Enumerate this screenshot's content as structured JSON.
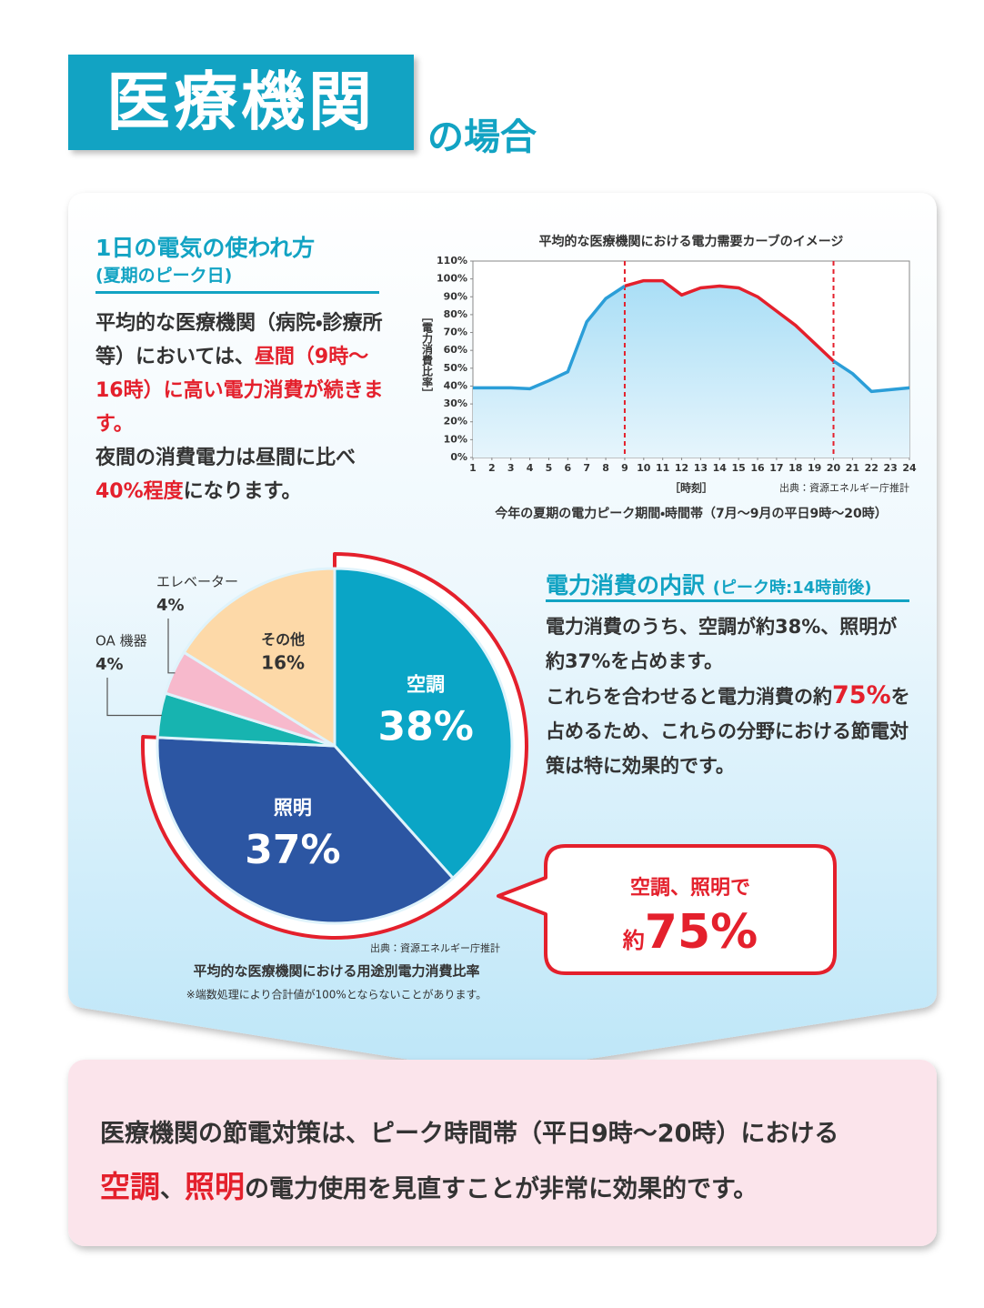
{
  "header": {
    "title": "医療機関",
    "suffix": "の場合"
  },
  "daily_usage": {
    "heading": "1日の電気の使われ方",
    "subheading": "(夏期のピーク日)",
    "paragraphs": [
      [
        {
          "text": "平均的な医療機関（病院・診療所等）においては、"
        },
        {
          "text": "昼間（9時〜16時）に高い電力消費が続きます。",
          "highlight": true
        }
      ],
      [
        {
          "text": "夜間の消費電力は昼間に比べ"
        },
        {
          "text": "40%程度",
          "highlight": true
        },
        {
          "text": "になります。"
        }
      ]
    ]
  },
  "chart_data": [
    {
      "type": "line",
      "title": "平均的な医療機関における電力需要カーブのイメージ",
      "x": [
        1,
        2,
        3,
        4,
        5,
        6,
        7,
        8,
        9,
        10,
        11,
        12,
        13,
        14,
        15,
        16,
        17,
        18,
        19,
        20,
        21,
        22,
        23,
        24
      ],
      "values": [
        39,
        39,
        39,
        38.5,
        43,
        48,
        76,
        89,
        96,
        99,
        99,
        91,
        95,
        96,
        95,
        90,
        82,
        74,
        64,
        54,
        47,
        37,
        38,
        39
      ],
      "color": "#2b9ed8",
      "highlight_color": "#e4202c",
      "highlight_range": [
        9,
        20
      ],
      "xlim": [
        1,
        24
      ],
      "ylim": [
        0,
        110
      ],
      "yticks": [
        {
          "value": 0,
          "label": "0%"
        },
        {
          "value": 10,
          "label": "10%"
        },
        {
          "value": 20,
          "label": "20%"
        },
        {
          "value": 30,
          "label": "30%"
        },
        {
          "value": 40,
          "label": "40%"
        },
        {
          "value": 50,
          "label": "50%"
        },
        {
          "value": 60,
          "label": "60%"
        },
        {
          "value": 70,
          "label": "70%"
        },
        {
          "value": 80,
          "label": "80%"
        },
        {
          "value": 90,
          "label": "90%"
        },
        {
          "value": 100,
          "label": "100%"
        },
        {
          "value": 110,
          "label": "110%"
        }
      ],
      "ylabel": "［電力消費比率］",
      "xlabel": "［時刻］",
      "source": "出典：資源エネルギー庁推計",
      "caption": "今年の夏期の電力ピーク期間・時間帯（7月〜9月の平日9時〜20時）"
    },
    {
      "type": "pie",
      "categories": [
        "空調",
        "照明",
        "OA 機器",
        "エレベーター",
        "その他"
      ],
      "values": [
        38,
        37,
        4,
        4,
        16
      ],
      "value_labels": [
        "38%",
        "37%",
        "4%",
        "4%",
        "16%"
      ],
      "colors": [
        "#0aa5c6",
        "#2c56a3",
        "#17b4b0",
        "#f7b9cc",
        "#fdd9a8"
      ],
      "outline_color": "#e4202c",
      "source": "出典：資源エネルギー庁推計",
      "caption": "平均的な医療機関における用途別電力消費比率",
      "note": "※端数処理により合計値が100%とならないことがあります。"
    }
  ],
  "breakdown": {
    "heading": "電力消費の内訳",
    "subheading": "(ピーク時:14時前後)",
    "paragraphs": [
      [
        {
          "text": "電力消費のうち、空調が約38%、照明が約37%を占めます。"
        }
      ],
      [
        {
          "text": "これらを合わせると電力消費の約"
        },
        {
          "text": "75%",
          "highlight": true
        },
        {
          "text": "を占めるため、これらの分野における節電対策は特に効果的です。"
        }
      ]
    ]
  },
  "callout": {
    "line1": "空調、照明で",
    "prefix": "約",
    "value": "75%"
  },
  "conclusion": {
    "lines": [
      [
        {
          "text": "医療機関の節電対策は、ピーク時間帯（平日9時〜20時）における"
        }
      ],
      [
        {
          "text": "空調",
          "highlight": true
        },
        {
          "text": "、"
        },
        {
          "text": "照明",
          "highlight": true
        },
        {
          "text": "の電力使用を見直すことが非常に効果的です。"
        }
      ]
    ]
  }
}
